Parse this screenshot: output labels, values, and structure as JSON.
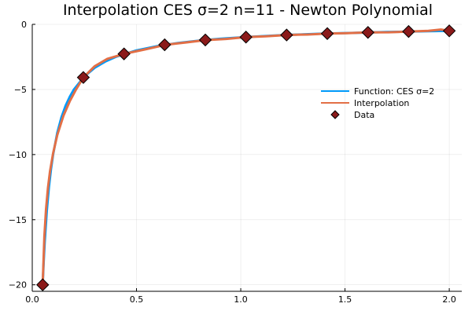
{
  "chart_data": {
    "type": "line",
    "title": "Interpolation CES σ=2 n=11 - Newton Polynomial",
    "xlabel": "",
    "ylabel": "",
    "xlim": [
      0.0,
      2.06
    ],
    "ylim": [
      -20.5,
      0.0
    ],
    "xticks": [
      0.0,
      0.5,
      1.0,
      1.5,
      2.0
    ],
    "xtick_labels": [
      "0.0",
      "0.5",
      "1.0",
      "1.5",
      "2.0"
    ],
    "yticks": [
      0,
      -5,
      -10,
      -15,
      -20
    ],
    "ytick_labels": [
      "0",
      "−5",
      "−10",
      "−15",
      "−20"
    ],
    "grid": true,
    "legend_position": "right",
    "series": [
      {
        "name": "Function: CES σ=2",
        "kind": "line",
        "color": "#009AFA",
        "x": [
          0.05,
          0.055,
          0.06,
          0.07,
          0.08,
          0.09,
          0.1,
          0.12,
          0.14,
          0.16,
          0.18,
          0.2,
          0.25,
          0.3,
          0.35,
          0.4,
          0.5,
          0.6,
          0.7,
          0.8,
          0.9,
          1.0,
          1.1,
          1.2,
          1.3,
          1.4,
          1.5,
          1.6,
          1.7,
          1.8,
          1.9,
          2.0
        ],
        "y": [
          -20.0,
          -18.18,
          -16.67,
          -14.29,
          -12.5,
          -11.11,
          -10.0,
          -8.33,
          -7.14,
          -6.25,
          -5.56,
          -5.0,
          -4.0,
          -3.33,
          -2.86,
          -2.5,
          -2.0,
          -1.67,
          -1.43,
          -1.25,
          -1.11,
          -1.0,
          -0.91,
          -0.83,
          -0.77,
          -0.71,
          -0.67,
          -0.63,
          -0.59,
          -0.56,
          -0.53,
          -0.5
        ]
      },
      {
        "name": "Interpolation",
        "kind": "line",
        "color": "#E26F46",
        "x": [
          0.05,
          0.058,
          0.066,
          0.075,
          0.085,
          0.1,
          0.12,
          0.15,
          0.18,
          0.21,
          0.245,
          0.3,
          0.36,
          0.44,
          0.54,
          0.64,
          0.74,
          0.83,
          0.93,
          1.025,
          1.12,
          1.22,
          1.32,
          1.415,
          1.51,
          1.61,
          1.71,
          1.8,
          1.9,
          1.96,
          2.0
        ],
        "y": [
          -20.0,
          -16.3,
          -14.2,
          -12.6,
          -11.3,
          -9.9,
          -8.5,
          -7.0,
          -5.9,
          -5.0,
          -4.08,
          -3.21,
          -2.65,
          -2.27,
          -1.93,
          -1.57,
          -1.39,
          -1.21,
          -1.12,
          -0.98,
          -0.92,
          -0.82,
          -0.78,
          -0.71,
          -0.68,
          -0.62,
          -0.61,
          -0.56,
          -0.5,
          -0.4,
          -0.5
        ]
      },
      {
        "name": "Data",
        "kind": "scatter",
        "marker": "diamond",
        "color": "#8B1A1A",
        "x": [
          0.05,
          0.245,
          0.44,
          0.635,
          0.83,
          1.025,
          1.22,
          1.415,
          1.61,
          1.805,
          2.0
        ],
        "y": [
          -20.0,
          -4.08,
          -2.27,
          -1.57,
          -1.2,
          -0.98,
          -0.82,
          -0.71,
          -0.62,
          -0.55,
          -0.5
        ]
      }
    ]
  }
}
